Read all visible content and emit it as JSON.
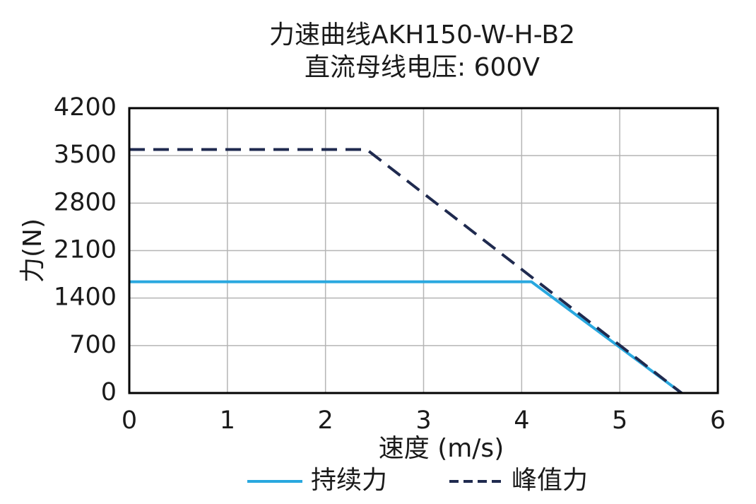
{
  "chart_data": {
    "type": "line",
    "title": "力速曲线AKH150-W-H-B2",
    "subtitle": "直流母线电压: 600V",
    "xlabel": "速度 (m/s)",
    "ylabel": "力(N)",
    "xlim": [
      0,
      6
    ],
    "ylim": [
      0,
      4200
    ],
    "x_ticks": [
      "0",
      "1",
      "2",
      "3",
      "4",
      "5",
      "6"
    ],
    "y_ticks": [
      "0",
      "700",
      "1400",
      "2100",
      "2800",
      "3500",
      "4200"
    ],
    "x_tick_values": [
      0,
      1,
      2,
      3,
      4,
      5,
      6
    ],
    "y_tick_values": [
      0,
      700,
      1400,
      2100,
      2800,
      3500,
      4200
    ],
    "grid": true,
    "legend_position": "bottom",
    "series": [
      {
        "name": "持续力",
        "style": "solid",
        "color": "#29A8DF",
        "x": [
          0,
          4.1,
          5.63
        ],
        "y": [
          1640,
          1640,
          0
        ]
      },
      {
        "name": "峰值力",
        "style": "dashed",
        "color": "#1F2A4F",
        "x": [
          0,
          2.42,
          5.63
        ],
        "y": [
          3590,
          3590,
          0
        ]
      }
    ]
  }
}
